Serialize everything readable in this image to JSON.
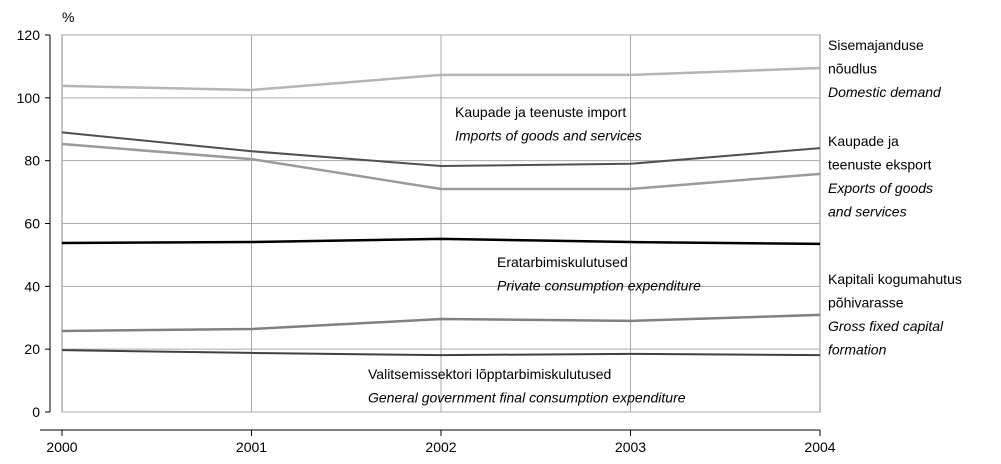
{
  "chart_data": {
    "type": "line",
    "y_unit": "%",
    "x": [
      "2000",
      "2001",
      "2002",
      "2003",
      "2004"
    ],
    "ylim": [
      0,
      120
    ],
    "yticks": [
      0,
      20,
      40,
      60,
      80,
      100,
      120
    ],
    "grid": true,
    "series": [
      {
        "label_et": [
          "Sisemajanduse",
          "nõudlus"
        ],
        "label_en": [
          "Domestic demand"
        ],
        "color": "#b5b5b5",
        "width": 2.5,
        "values": [
          103.8,
          102.5,
          107.3,
          107.3,
          109.5
        ]
      },
      {
        "label_et": [
          "Kaupade ja teenuste import"
        ],
        "label_en": [
          "Imports of goods and services"
        ],
        "color": "#505050",
        "width": 2,
        "values": [
          89,
          83,
          78.3,
          79,
          84
        ]
      },
      {
        "label_et": [
          "Kaupade ja",
          "teenuste eksport"
        ],
        "label_en": [
          "Exports of goods",
          "and services"
        ],
        "color": "#9a9a9a",
        "width": 2.5,
        "values": [
          85.3,
          80.5,
          71,
          71,
          75.8
        ]
      },
      {
        "label_et": [
          "Eratarbimiskulutused"
        ],
        "label_en": [
          "Private consumption expenditure"
        ],
        "color": "#000000",
        "width": 2.5,
        "values": [
          53.8,
          54.1,
          55.1,
          54.1,
          53.5
        ]
      },
      {
        "label_et": [
          "Kapitali kogumahutus",
          "põhivarasse"
        ],
        "label_en": [
          "Gross fixed capital",
          "formation"
        ],
        "color": "#808080",
        "width": 2.5,
        "values": [
          25.8,
          26.4,
          29.6,
          29,
          30.9
        ]
      },
      {
        "label_et": [
          "Valitsemissektori lõpptarbimiskulutused"
        ],
        "label_en": [
          "General government final consumption expenditure"
        ],
        "color": "#404040",
        "width": 2,
        "values": [
          19.7,
          18.8,
          18.1,
          18.5,
          18.1
        ]
      }
    ]
  }
}
